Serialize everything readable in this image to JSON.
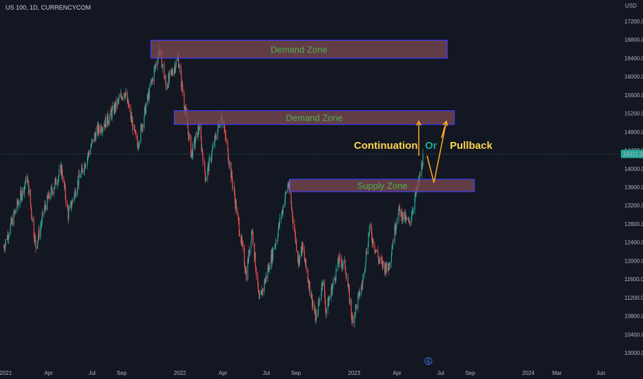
{
  "header": {
    "symbol_line": "US 100, 1D, CURRENCYCOM"
  },
  "price_axis": {
    "currency": "USD",
    "current_price_label": "14321.3"
  },
  "zones": [
    {
      "label": "Demand Zone",
      "low": 16400,
      "high": 16790,
      "start": "2021-11-01",
      "end": "2023-07-15"
    },
    {
      "label": "Demand Zone",
      "low": 14960,
      "high": 15260,
      "start": "2021-12-20",
      "end": "2023-07-30"
    },
    {
      "label": "Supply Zone",
      "low": 13500,
      "high": 13770,
      "start": "2022-08-20",
      "end": "2023-09-10"
    }
  ],
  "annotations": {
    "continuation": "Continuation",
    "or": "Or",
    "pullback": "Pullback",
    "colors": {
      "arrow": "#f5a623",
      "continuation_text": "#ffd54f",
      "or_text": "#26a69a",
      "pullback_text": "#ffd54f"
    }
  },
  "chart_data": {
    "type": "candlestick",
    "title": "",
    "ylim": [
      9800,
      17600
    ],
    "y_ticks": [
      10000,
      10400,
      10800,
      11200,
      11600,
      12000,
      12400,
      12800,
      13200,
      13600,
      14000,
      14400,
      14800,
      15200,
      15600,
      16000,
      16400,
      16800,
      17200
    ],
    "x_range": [
      "2020-12-20",
      "2024-07-10"
    ],
    "x_ticks": [
      {
        "label": "2021",
        "date": "2021-01-01"
      },
      {
        "label": "Apr",
        "date": "2021-04-01"
      },
      {
        "label": "Jul",
        "date": "2021-07-01"
      },
      {
        "label": "Sep",
        "date": "2021-09-01"
      },
      {
        "label": "2022",
        "date": "2022-01-01"
      },
      {
        "label": "Apr",
        "date": "2022-04-01"
      },
      {
        "label": "Jul",
        "date": "2022-07-01"
      },
      {
        "label": "Sep",
        "date": "2022-09-01"
      },
      {
        "label": "2023",
        "date": "2023-01-01"
      },
      {
        "label": "Apr",
        "date": "2023-04-01"
      },
      {
        "label": "Jul",
        "date": "2023-07-01"
      },
      {
        "label": "Sep",
        "date": "2023-09-01"
      },
      {
        "label": "2024",
        "date": "2024-01-01"
      },
      {
        "label": "Mar",
        "date": "2024-03-01"
      },
      {
        "label": "Jun",
        "date": "2024-06-01"
      }
    ],
    "price_path": [
      [
        "2020-12-28",
        12300
      ],
      [
        "2021-01-25",
        13200
      ],
      [
        "2021-02-15",
        13800
      ],
      [
        "2021-03-05",
        12300
      ],
      [
        "2021-03-25",
        13200
      ],
      [
        "2021-04-28",
        14000
      ],
      [
        "2021-05-12",
        13000
      ],
      [
        "2021-06-01",
        13700
      ],
      [
        "2021-07-10",
        14800
      ],
      [
        "2021-08-05",
        15100
      ],
      [
        "2021-09-07",
        15700
      ],
      [
        "2021-10-04",
        14500
      ],
      [
        "2021-10-25",
        15500
      ],
      [
        "2021-11-19",
        16600
      ],
      [
        "2021-12-03",
        15800
      ],
      [
        "2021-12-28",
        16400
      ],
      [
        "2022-01-25",
        14300
      ],
      [
        "2022-02-10",
        14900
      ],
      [
        "2022-02-24",
        13800
      ],
      [
        "2022-03-29",
        15200
      ],
      [
        "2022-04-12",
        14300
      ],
      [
        "2022-05-20",
        11700
      ],
      [
        "2022-06-01",
        12700
      ],
      [
        "2022-06-16",
        11100
      ],
      [
        "2022-07-20",
        12400
      ],
      [
        "2022-08-16",
        13700
      ],
      [
        "2022-09-06",
        12000
      ],
      [
        "2022-09-14",
        12300
      ],
      [
        "2022-10-13",
        10700
      ],
      [
        "2022-10-27",
        11600
      ],
      [
        "2022-11-03",
        10900
      ],
      [
        "2022-11-30",
        12000
      ],
      [
        "2022-12-13",
        11900
      ],
      [
        "2022-12-28",
        10700
      ],
      [
        "2023-01-18",
        11500
      ],
      [
        "2023-02-02",
        12700
      ],
      [
        "2023-02-22",
        12000
      ],
      [
        "2023-03-13",
        11800
      ],
      [
        "2023-04-03",
        13100
      ],
      [
        "2023-04-26",
        12800
      ],
      [
        "2023-05-18",
        13800
      ],
      [
        "2023-05-26",
        14300
      ]
    ],
    "current_price": 14321.3
  }
}
